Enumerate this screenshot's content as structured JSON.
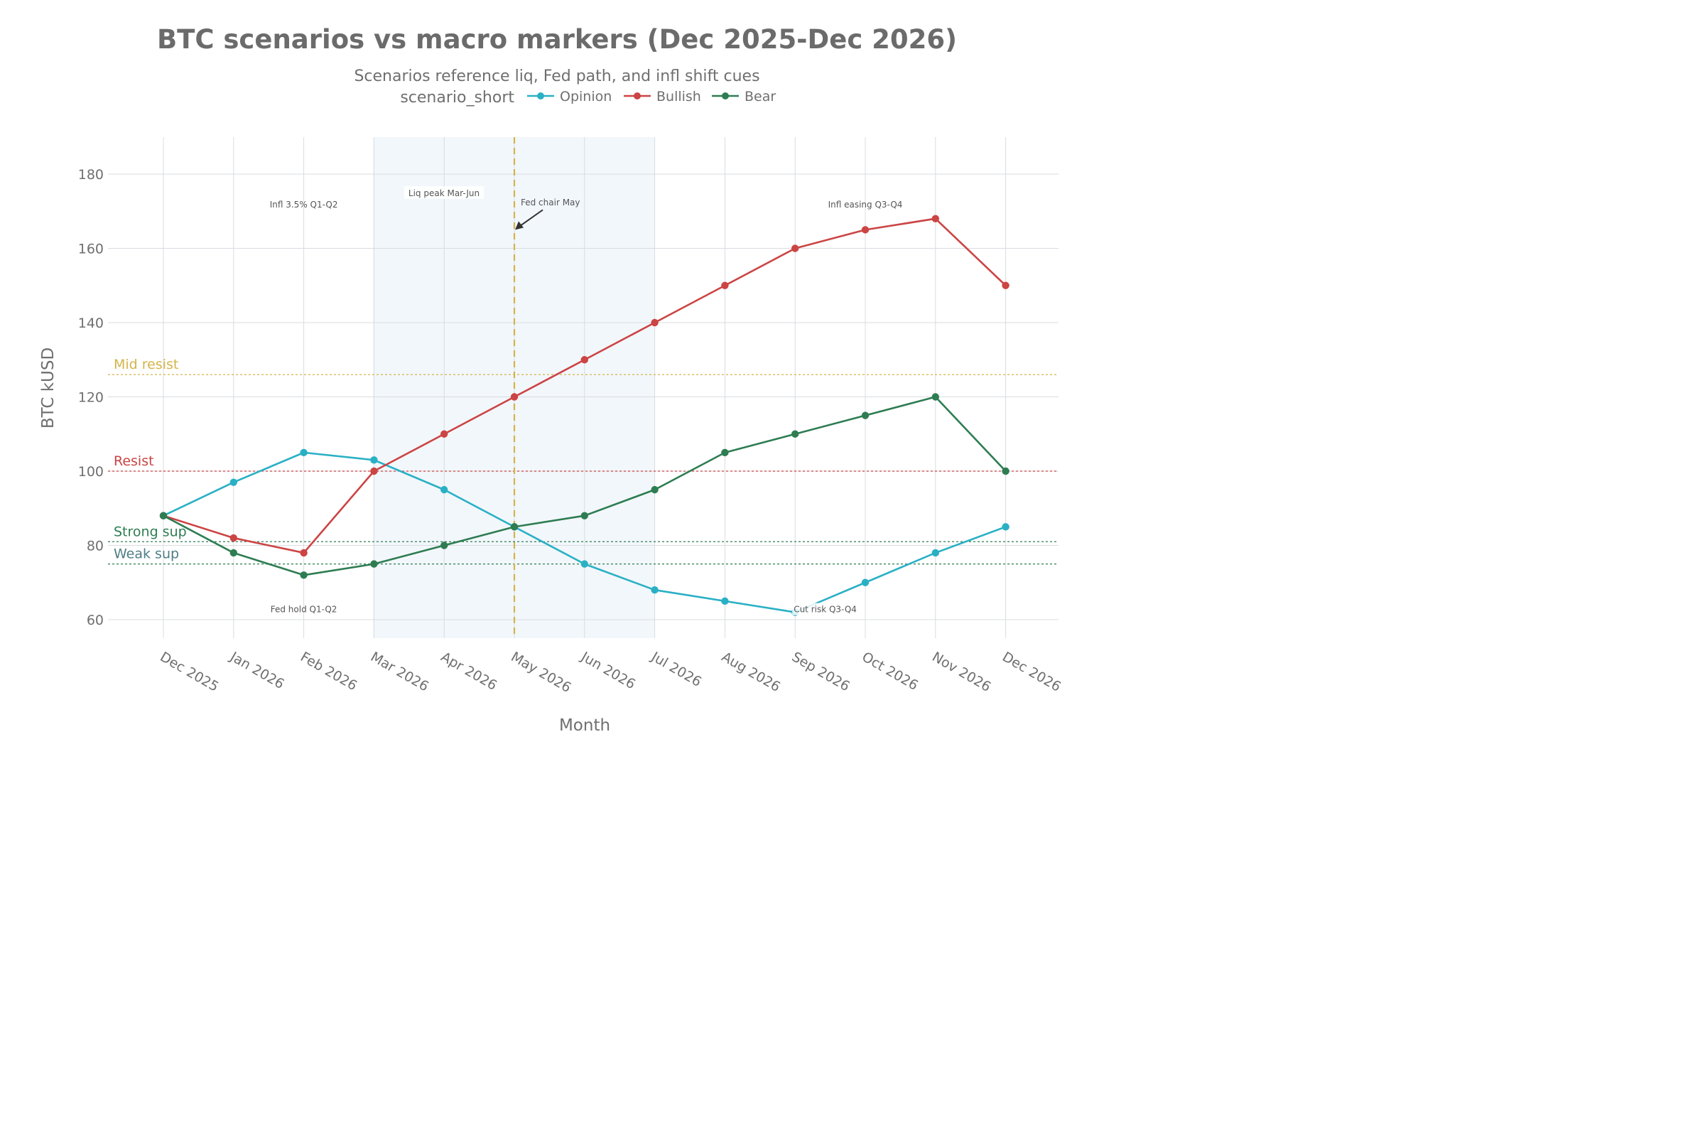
{
  "chart_data": {
    "type": "line",
    "title": "BTC scenarios vs macro markers (Dec 2025-Dec 2026)",
    "subtitle": "Scenarios reference liq, Fed path, and infl shift cues",
    "xlabel": "Month",
    "ylabel": "BTC kUSD",
    "ylim": [
      54,
      190
    ],
    "yticks": [
      60,
      80,
      100,
      120,
      140,
      160,
      180
    ],
    "categories": [
      "Dec 2025",
      "Jan 2026",
      "Feb 2026",
      "Mar 2026",
      "Apr 2026",
      "May 2026",
      "Jun 2026",
      "Jul 2026",
      "Aug 2026",
      "Sep 2026",
      "Oct 2026",
      "Nov 2026",
      "Dec 2026"
    ],
    "grid": true,
    "legend": {
      "title": "scenario_short",
      "placement": "top-center"
    },
    "series": [
      {
        "name": "Opinion",
        "color": "#2ab0c5",
        "values": [
          88,
          97,
          105,
          103,
          95,
          85,
          75,
          68,
          65,
          62,
          70,
          78,
          85
        ]
      },
      {
        "name": "Bullish",
        "color": "#cc4444",
        "values": [
          88,
          82,
          78,
          100,
          110,
          120,
          130,
          140,
          150,
          160,
          165,
          168,
          150
        ]
      },
      {
        "name": "Bear",
        "color": "#2e7d52",
        "values": [
          88,
          78,
          72,
          75,
          80,
          85,
          88,
          95,
          105,
          110,
          115,
          120,
          100
        ]
      }
    ],
    "levels": [
      {
        "label": "Mid resist",
        "value": 126,
        "color": "#d4b44a"
      },
      {
        "label": "Resist",
        "value": 100,
        "color": "#cc4444"
      },
      {
        "label": "Strong sup",
        "value": 81,
        "color": "#2e7d52"
      },
      {
        "label": "Weak sup",
        "value": 75,
        "color": "#2e7d52",
        "label_color": "#4e7d86"
      }
    ],
    "shaded_region": {
      "label": "Liq peak Mar-Jun",
      "from": "Mar 2026",
      "to": "Jul 2026",
      "color": "#eaf2f9"
    },
    "vertical_marker": {
      "label": "Fed chair May",
      "at": "May 2026",
      "color": "#d4b44a"
    },
    "annotations": [
      {
        "text": "Infl 3.5% Q1-Q2",
        "x": "Feb 2026",
        "y": 171
      },
      {
        "text": "Fed hold Q1-Q2",
        "x": "Feb 2026",
        "y": 62
      },
      {
        "text": "Infl easing Q3-Q4",
        "x": "Oct 2026",
        "y": 171
      },
      {
        "text": "Cut risk Q3-Q4",
        "x": "Sep 2026",
        "y": 62
      }
    ]
  }
}
